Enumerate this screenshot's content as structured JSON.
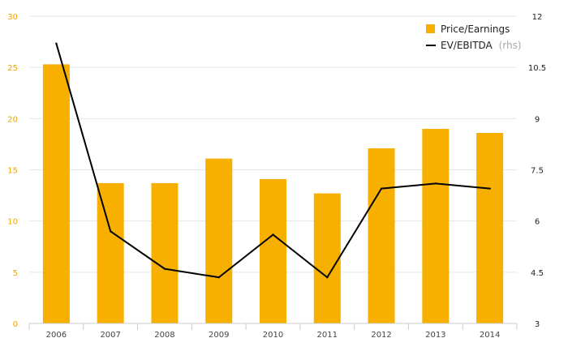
{
  "chart_data": {
    "type": "bar",
    "categories": [
      "2006",
      "2007",
      "2008",
      "2009",
      "2010",
      "2011",
      "2012",
      "2013",
      "2014"
    ],
    "series": [
      {
        "name": "Price/Earnings",
        "kind": "bar",
        "axis": "left",
        "color": "#f7b000",
        "values": [
          25.3,
          13.7,
          13.7,
          16.1,
          14.1,
          12.7,
          17.1,
          19.0,
          18.6
        ]
      },
      {
        "name": "EV/EBITDA",
        "name_suffix": "(rhs)",
        "kind": "line",
        "axis": "right",
        "color": "#000000",
        "values": [
          11.2,
          5.7,
          4.6,
          4.35,
          5.6,
          4.35,
          6.95,
          7.1,
          6.95
        ]
      }
    ],
    "left_axis": {
      "ylim": [
        0,
        30
      ],
      "ticks": [
        "0",
        "5",
        "10",
        "15",
        "20",
        "25",
        "30"
      ]
    },
    "right_axis": {
      "ylim": [
        3,
        12
      ],
      "ticks": [
        "3",
        "4.5",
        "6",
        "7.5",
        "9",
        "10.5",
        "12"
      ]
    },
    "grid": true,
    "legend_position": "top-right",
    "colors": {
      "left_tick": "#f0a500",
      "grid": "#e6e6e6"
    }
  }
}
